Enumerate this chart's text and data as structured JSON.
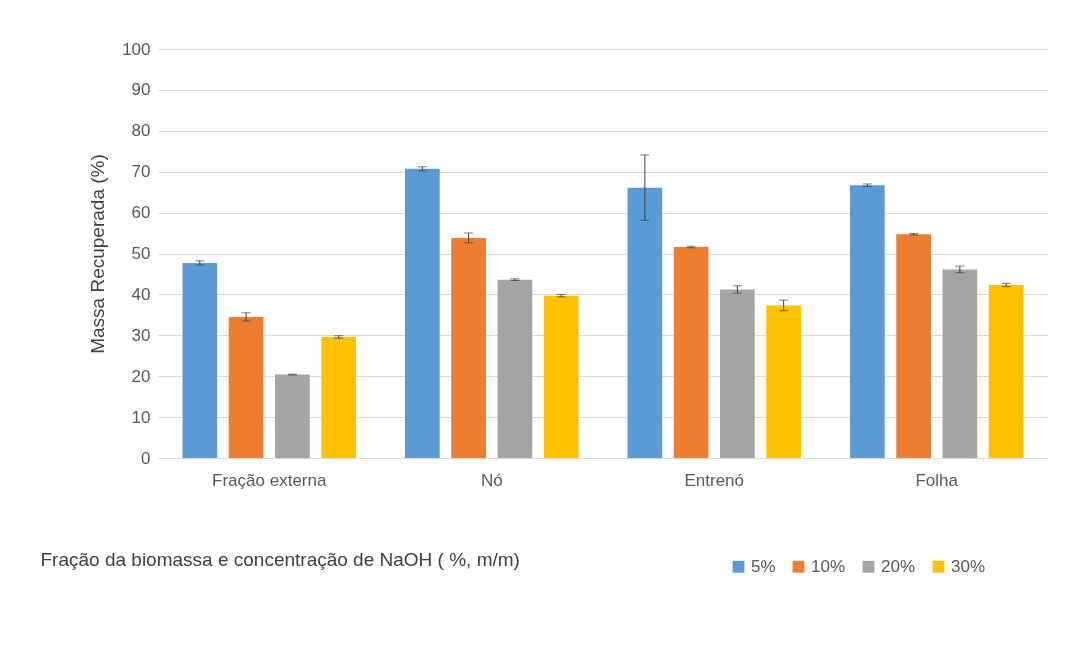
{
  "chart_data": {
    "type": "bar",
    "xlabel": "Fração da biomassa e concentração de NaOH ( %, m/m)",
    "ylabel": "Massa Recuperada (%)",
    "categories": [
      "Fração externa",
      "Nó",
      "Entrenó",
      "Folha"
    ],
    "series": [
      {
        "name": "5%",
        "color": "#5b9bd5",
        "values": [
          47.7,
          70.7,
          66.1,
          66.7
        ],
        "errors": [
          0.5,
          0.5,
          8,
          0.3
        ]
      },
      {
        "name": "10%",
        "color": "#ed7d31",
        "values": [
          34.5,
          53.8,
          51.6,
          54.7
        ],
        "errors": [
          1,
          1.2,
          0.2,
          0.2
        ]
      },
      {
        "name": "20%",
        "color": "#a5a5a5",
        "values": [
          20.4,
          43.6,
          41.2,
          46.1
        ],
        "errors": [
          0.1,
          0.2,
          0.9,
          0.8
        ]
      },
      {
        "name": "30%",
        "color": "#ffc000",
        "values": [
          29.6,
          39.7,
          37.3,
          42.3
        ],
        "errors": [
          0.3,
          0.3,
          1.3,
          0.4
        ]
      }
    ],
    "ylim": [
      0,
      100
    ],
    "yticks": [
      0,
      10,
      20,
      30,
      40,
      50,
      60,
      70,
      80,
      90,
      100
    ],
    "grid": "y",
    "legend": "bottom"
  }
}
